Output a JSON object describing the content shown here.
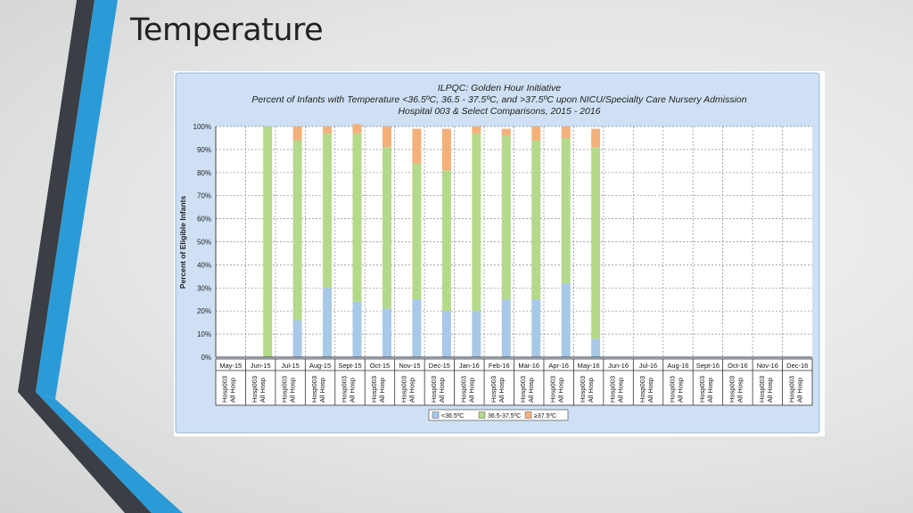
{
  "slide": {
    "title": "Temperature"
  },
  "chart_data": {
    "type": "bar",
    "stacked": true,
    "title": "ILPQC: Golden Hour Initiative",
    "subtitle": "Percent of Infants with Temperature <36.5ºC, 36.5 - 37.5ºC, and >37.5ºC upon NICU/Specialty Care Nursery Admission",
    "subtitle2": "Hospital 003 & Select Comparisons, 2015 - 2016",
    "ylabel": "Percent of Eligible Infants",
    "xlabel": "",
    "ylim": [
      0,
      100
    ],
    "y_ticks": [
      "0%",
      "10%",
      "20%",
      "30%",
      "40%",
      "50%",
      "60%",
      "70%",
      "80%",
      "90%",
      "100%"
    ],
    "grid": true,
    "categories": [
      "May-15",
      "Jun-15",
      "Jul-15",
      "Aug-15",
      "Sept-15",
      "Oct-15",
      "Nov-15",
      "Dec-15",
      "Jan-16",
      "Feb-16",
      "Mar-16",
      "Apr-16",
      "May-16",
      "Jun-16",
      "Jul-16",
      "Aug-16",
      "Sept-16",
      "Oct-16",
      "Nov-16",
      "Dec-16"
    ],
    "subgroups": [
      "Hosp003",
      "All Hosp"
    ],
    "series": [
      {
        "name": "<36.5ºC",
        "color": "#a8c8e8",
        "values": [
          null,
          0,
          16,
          30,
          24,
          21,
          25,
          20,
          20,
          25,
          25,
          32,
          8,
          null,
          null,
          null,
          null,
          null,
          null,
          null
        ]
      },
      {
        "name": "36.5-37.5ºC",
        "color": "#b4d98a",
        "values": [
          null,
          100,
          78,
          67,
          73,
          70,
          59,
          61,
          77,
          71,
          69,
          63,
          83,
          null,
          null,
          null,
          null,
          null,
          null,
          null
        ]
      },
      {
        "name": "≥37.5ºC",
        "color": "#f4b07a",
        "values": [
          null,
          0,
          6,
          3,
          4,
          9,
          15,
          18,
          3,
          3,
          6,
          5,
          8,
          null,
          null,
          null,
          null,
          null,
          null,
          null
        ]
      }
    ],
    "legend_position": "bottom",
    "colors": {
      "panel": "#cfe0f4",
      "grid": "#888888",
      "axis": "#444444"
    }
  }
}
